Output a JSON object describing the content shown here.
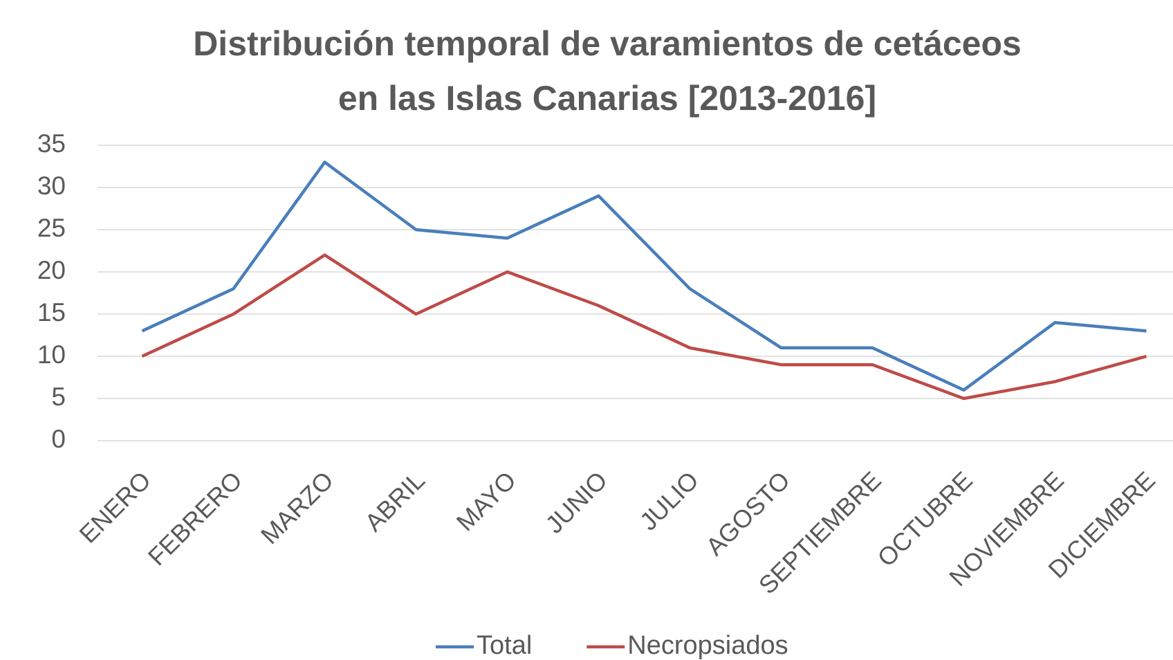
{
  "chart_data": {
    "type": "line",
    "title": [
      "Distribución temporal de varamientos de cetáceos",
      "en las Islas Canarias [2013-2016]"
    ],
    "categories": [
      "ENERO",
      "FEBRERO",
      "MARZO",
      "ABRIL",
      "MAYO",
      "JUNIO",
      "JULIO",
      "AGOSTO",
      "SEPTIEMBRE",
      "OCTUBRE",
      "NOVIEMBRE",
      "DICIEMBRE"
    ],
    "series": [
      {
        "name": "Total",
        "color": "#4a7ebb",
        "values": [
          13,
          18,
          33,
          25,
          24,
          29,
          18,
          11,
          11,
          6,
          14,
          13
        ]
      },
      {
        "name": "Necropsiados",
        "color": "#be4b48",
        "values": [
          10,
          15,
          22,
          15,
          20,
          16,
          11,
          9,
          9,
          5,
          7,
          10
        ]
      }
    ],
    "ylim": [
      0,
      35
    ],
    "yticks": [
      0,
      5,
      10,
      15,
      20,
      25,
      30,
      35
    ],
    "grid": true,
    "legend": "bottom"
  }
}
